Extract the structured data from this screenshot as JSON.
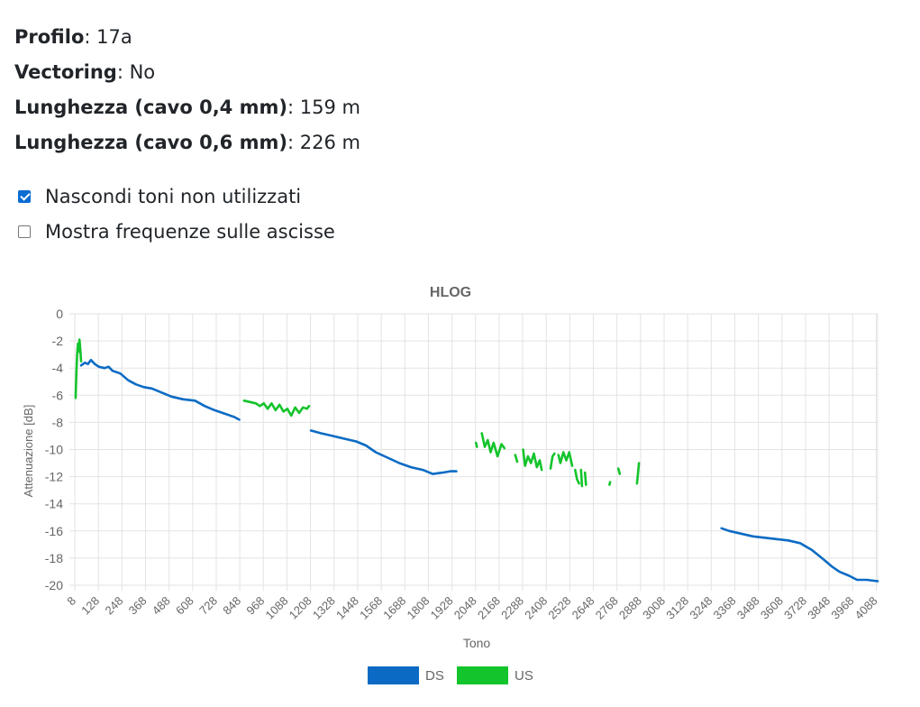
{
  "info": {
    "profile_label": "Profilo",
    "profile_value": "17a",
    "vectoring_label": "Vectoring",
    "vectoring_value": "No",
    "len04_label": "Lunghezza (cavo 0,4 mm)",
    "len04_value": "159 m",
    "len06_label": "Lunghezza (cavo 0,6 mm)",
    "len06_value": "226 m"
  },
  "options": {
    "hide_unused_label": "Nascondi toni non utilizzati",
    "hide_unused_checked": true,
    "show_freq_label": "Mostra frequenze sulle ascisse",
    "show_freq_checked": false
  },
  "chart_data": {
    "type": "line",
    "title": "HLOG",
    "xlabel": "Tono",
    "ylabel": "Attenuazione [dB]",
    "xlim": [
      8,
      4095
    ],
    "ylim": [
      -20,
      0
    ],
    "x_ticks": [
      8,
      128,
      248,
      368,
      488,
      608,
      728,
      848,
      968,
      1088,
      1208,
      1328,
      1448,
      1568,
      1688,
      1808,
      1928,
      2048,
      2168,
      2288,
      2408,
      2528,
      2648,
      2768,
      2888,
      3008,
      3128,
      3248,
      3368,
      3488,
      3608,
      3728,
      3848,
      3968,
      4088
    ],
    "y_ticks": [
      0,
      -2,
      -4,
      -6,
      -8,
      -10,
      -12,
      -14,
      -16,
      -18,
      -20
    ],
    "grid": true,
    "legend_position": "bottom",
    "series": [
      {
        "name": "DS",
        "color": "#0b6bc4",
        "segments": [
          [
            [
              40,
              -3.8
            ],
            [
              60,
              -3.6
            ],
            [
              75,
              -3.7
            ],
            [
              90,
              -3.4
            ],
            [
              110,
              -3.7
            ],
            [
              130,
              -3.9
            ],
            [
              160,
              -4.0
            ],
            [
              180,
              -3.9
            ],
            [
              200,
              -4.2
            ],
            [
              240,
              -4.4
            ],
            [
              280,
              -4.9
            ],
            [
              320,
              -5.2
            ],
            [
              360,
              -5.4
            ],
            [
              400,
              -5.5
            ],
            [
              450,
              -5.8
            ],
            [
              500,
              -6.1
            ],
            [
              560,
              -6.3
            ],
            [
              620,
              -6.4
            ],
            [
              670,
              -6.8
            ],
            [
              720,
              -7.1
            ],
            [
              780,
              -7.4
            ],
            [
              820,
              -7.6
            ],
            [
              845,
              -7.8
            ]
          ],
          [
            [
              1210,
              -8.6
            ],
            [
              1260,
              -8.8
            ],
            [
              1320,
              -9.0
            ],
            [
              1380,
              -9.2
            ],
            [
              1440,
              -9.4
            ],
            [
              1490,
              -9.7
            ],
            [
              1540,
              -10.2
            ],
            [
              1600,
              -10.6
            ],
            [
              1660,
              -11.0
            ],
            [
              1720,
              -11.3
            ],
            [
              1780,
              -11.5
            ],
            [
              1830,
              -11.8
            ],
            [
              1880,
              -11.7
            ],
            [
              1920,
              -11.6
            ],
            [
              1950,
              -11.6
            ]
          ],
          [
            [
              3300,
              -15.8
            ],
            [
              3340,
              -16.0
            ],
            [
              3400,
              -16.2
            ],
            [
              3460,
              -16.4
            ],
            [
              3520,
              -16.5
            ],
            [
              3580,
              -16.6
            ],
            [
              3640,
              -16.7
            ],
            [
              3700,
              -16.9
            ],
            [
              3760,
              -17.4
            ],
            [
              3820,
              -18.1
            ],
            [
              3860,
              -18.6
            ],
            [
              3900,
              -19.0
            ],
            [
              3950,
              -19.3
            ],
            [
              3990,
              -19.6
            ],
            [
              4040,
              -19.6
            ],
            [
              4095,
              -19.7
            ]
          ]
        ]
      },
      {
        "name": "US",
        "color": "#14c42c",
        "segments": [
          [
            [
              12,
              -6.2
            ],
            [
              16,
              -4.5
            ],
            [
              20,
              -3.0
            ],
            [
              24,
              -2.2
            ],
            [
              28,
              -2.8
            ],
            [
              32,
              -1.9
            ],
            [
              36,
              -2.6
            ],
            [
              40,
              -3.5
            ]
          ],
          [
            [
              870,
              -6.4
            ],
            [
              900,
              -6.5
            ],
            [
              930,
              -6.6
            ],
            [
              950,
              -6.8
            ],
            [
              970,
              -6.6
            ],
            [
              990,
              -7.0
            ],
            [
              1010,
              -6.6
            ],
            [
              1030,
              -7.1
            ],
            [
              1050,
              -6.7
            ],
            [
              1070,
              -7.2
            ],
            [
              1090,
              -7.0
            ],
            [
              1110,
              -7.5
            ],
            [
              1130,
              -6.9
            ],
            [
              1150,
              -7.3
            ],
            [
              1170,
              -6.9
            ],
            [
              1190,
              -7.0
            ],
            [
              1200,
              -6.8
            ]
          ],
          [
            [
              2050,
              -9.5
            ],
            [
              2055,
              -9.8
            ]
          ],
          [
            [
              2080,
              -8.8
            ],
            [
              2095,
              -9.8
            ],
            [
              2110,
              -9.3
            ],
            [
              2125,
              -10.2
            ],
            [
              2140,
              -9.5
            ],
            [
              2160,
              -10.5
            ],
            [
              2180,
              -9.6
            ],
            [
              2195,
              -9.9
            ]
          ],
          [
            [
              2250,
              -10.4
            ],
            [
              2260,
              -10.9
            ]
          ],
          [
            [
              2290,
              -10.0
            ],
            [
              2300,
              -11.2
            ],
            [
              2315,
              -10.5
            ],
            [
              2330,
              -11.0
            ],
            [
              2345,
              -10.3
            ],
            [
              2360,
              -11.3
            ],
            [
              2375,
              -10.8
            ],
            [
              2385,
              -11.5
            ]
          ],
          [
            [
              2430,
              -11.4
            ],
            [
              2440,
              -10.5
            ],
            [
              2450,
              -10.3
            ]
          ],
          [
            [
              2470,
              -10.4
            ],
            [
              2480,
              -11.0
            ],
            [
              2495,
              -10.2
            ],
            [
              2510,
              -10.8
            ],
            [
              2525,
              -10.2
            ],
            [
              2540,
              -11.2
            ]
          ],
          [
            [
              2555,
              -11.5
            ],
            [
              2565,
              -12.2
            ],
            [
              2575,
              -12.5
            ]
          ],
          [
            [
              2585,
              -11.5
            ],
            [
              2590,
              -12.7
            ]
          ],
          [
            [
              2605,
              -11.7
            ],
            [
              2610,
              -12.6
            ]
          ],
          [
            [
              2730,
              -12.6
            ],
            [
              2733,
              -12.4
            ]
          ],
          [
            [
              2775,
              -11.4
            ],
            [
              2782,
              -11.8
            ]
          ],
          [
            [
              2870,
              -12.5
            ],
            [
              2875,
              -11.8
            ],
            [
              2880,
              -11.0
            ]
          ]
        ]
      }
    ]
  }
}
